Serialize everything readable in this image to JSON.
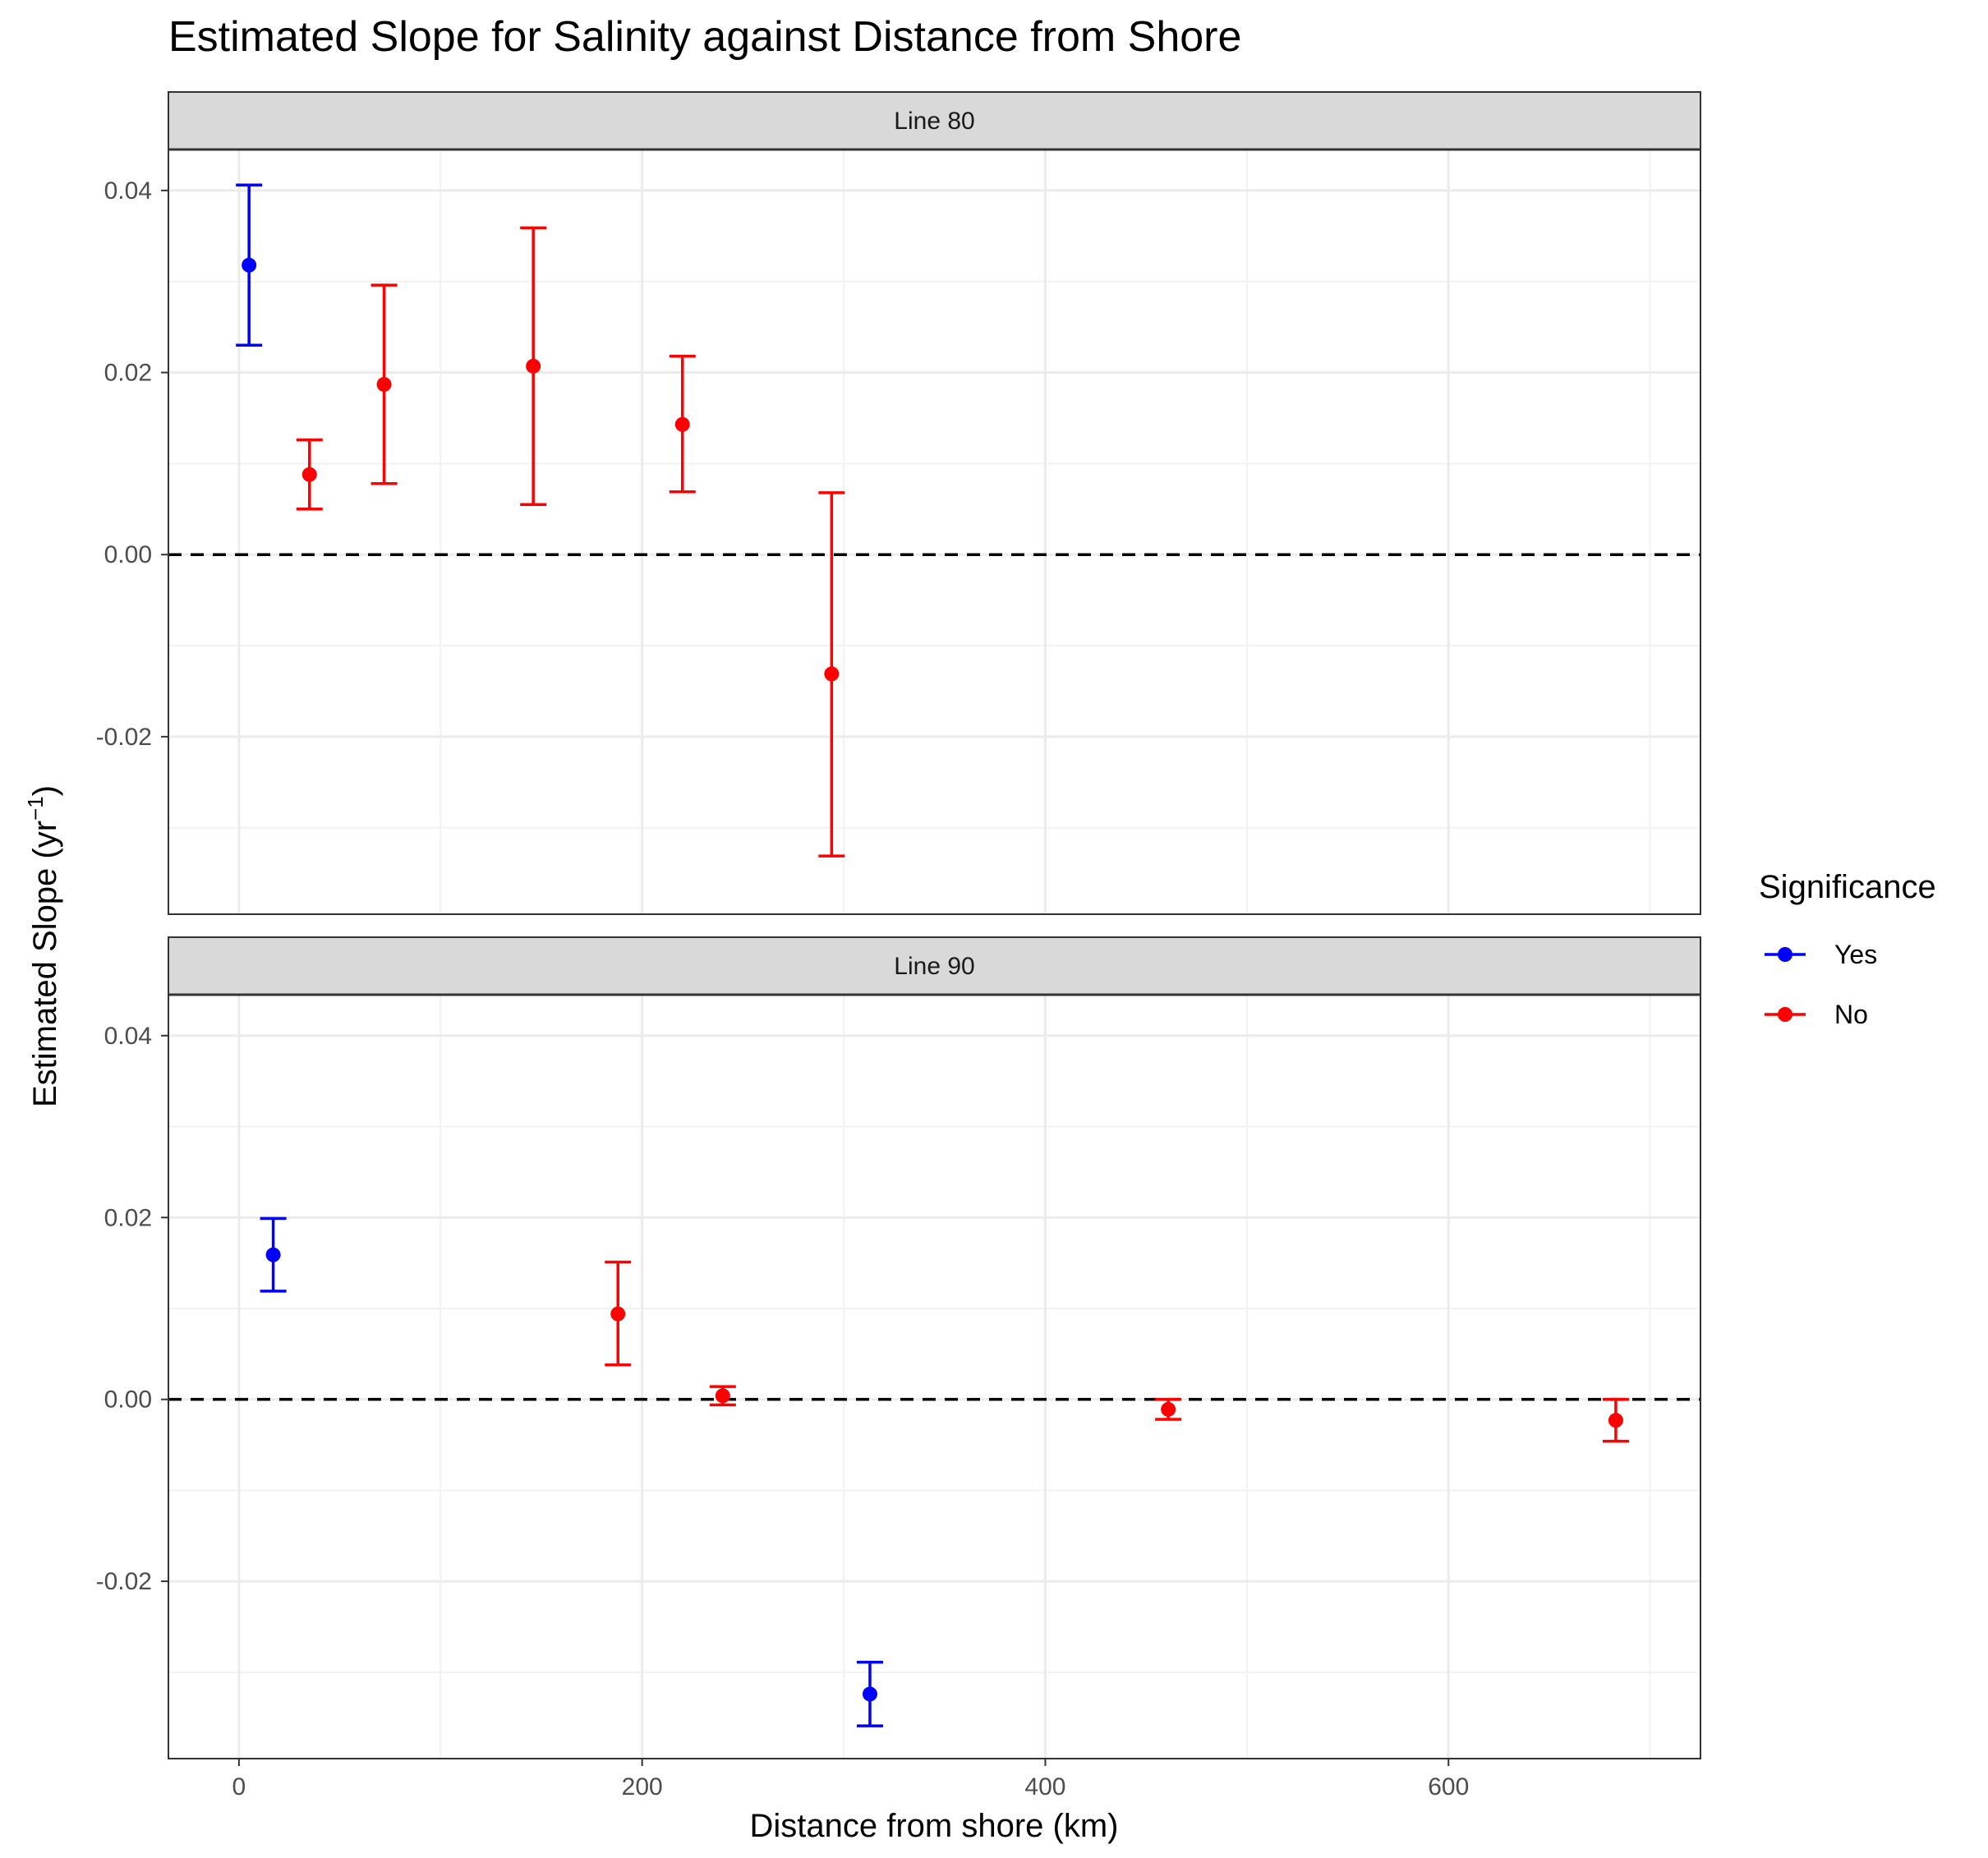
{
  "chart_data": {
    "type": "scatter",
    "title": "Estimated Slope for Salinity against Distance from Shore",
    "xlabel": "Distance from shore (km)",
    "ylabel_main": "Estimated Slope (yr",
    "ylabel_sup": "−1",
    "ylabel_close": ")",
    "xlim": [
      -35,
      725
    ],
    "ylim": [
      -0.0395,
      0.0445
    ],
    "x_ticks": [
      0,
      200,
      400,
      600
    ],
    "y_ticks": [
      0.04,
      0.02,
      0.0,
      -0.02
    ],
    "y_tick_labels": [
      "0.04",
      "0.02",
      "0.00",
      "-0.02"
    ],
    "grid": true,
    "reference_line": {
      "y": 0.0,
      "style": "dashed",
      "color": "#000000"
    },
    "legend": {
      "title": "Significance",
      "position": "right",
      "entries": [
        {
          "label": "Yes",
          "color": "#0000ff"
        },
        {
          "label": "No",
          "color": "#ff0000"
        }
      ]
    },
    "panels": [
      {
        "label": "Line 80",
        "points": [
          {
            "x": 5,
            "y": 0.0318,
            "lower": 0.023,
            "upper": 0.0406,
            "significance": "Yes"
          },
          {
            "x": 35,
            "y": 0.0088,
            "lower": 0.005,
            "upper": 0.0126,
            "significance": "No"
          },
          {
            "x": 72,
            "y": 0.0187,
            "lower": 0.0078,
            "upper": 0.0296,
            "significance": "No"
          },
          {
            "x": 146,
            "y": 0.0207,
            "lower": 0.0055,
            "upper": 0.0359,
            "significance": "No"
          },
          {
            "x": 220,
            "y": 0.0143,
            "lower": 0.0069,
            "upper": 0.0218,
            "significance": "No"
          },
          {
            "x": 294,
            "y": -0.0131,
            "lower": -0.0331,
            "upper": 0.0068,
            "significance": "No"
          }
        ]
      },
      {
        "label": "Line 90",
        "points": [
          {
            "x": 17,
            "y": 0.0159,
            "lower": 0.0119,
            "upper": 0.0199,
            "significance": "Yes"
          },
          {
            "x": 188,
            "y": 0.0094,
            "lower": 0.0038,
            "upper": 0.0151,
            "significance": "No"
          },
          {
            "x": 240,
            "y": 0.0004,
            "lower": -0.0006,
            "upper": 0.0014,
            "significance": "No"
          },
          {
            "x": 313,
            "y": -0.0324,
            "lower": -0.0359,
            "upper": -0.0289,
            "significance": "Yes"
          },
          {
            "x": 461,
            "y": -0.0011,
            "lower": -0.0022,
            "upper": 0.0,
            "significance": "No"
          },
          {
            "x": 683,
            "y": -0.0023,
            "lower": -0.0046,
            "upper": 0.0,
            "significance": "No"
          }
        ]
      }
    ]
  }
}
